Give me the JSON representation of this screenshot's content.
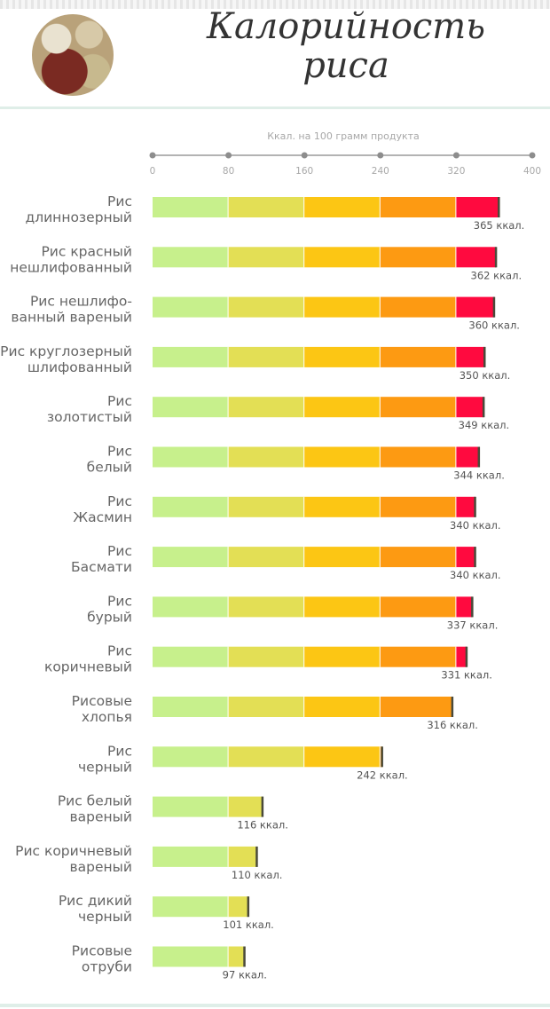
{
  "header": {
    "title_line1": "Калорийность",
    "title_line2": "риса",
    "photo_icon": "rice-photo"
  },
  "chart_data": {
    "type": "bar",
    "orientation": "horizontal",
    "axis_title": "Ккал. на 100 грамм продукта",
    "xlim": [
      0,
      400
    ],
    "ticks": [
      0,
      80,
      160,
      240,
      320,
      400
    ],
    "segment_colors": [
      "#c7f08c",
      "#e3df55",
      "#fcc614",
      "#fd9a12",
      "#ff0a3f"
    ],
    "unit_label": "ккал.",
    "categories": [
      [
        "Рис",
        "длиннозерный"
      ],
      [
        "Рис красный",
        "нешлифованный"
      ],
      [
        "Рис нешлифо-",
        "ванный вареный"
      ],
      [
        "Рис круглозерный",
        "шлифованный"
      ],
      [
        "Рис",
        "золотистый"
      ],
      [
        "Рис",
        "белый"
      ],
      [
        "Рис",
        "Жасмин"
      ],
      [
        "Рис",
        "Басмати"
      ],
      [
        "Рис",
        "бурый"
      ],
      [
        "Рис",
        "коричневый"
      ],
      [
        "Рисовые",
        "хлопья"
      ],
      [
        "Рис",
        "черный"
      ],
      [
        "Рис белый",
        "вареный"
      ],
      [
        "Рис коричневый",
        "вареный"
      ],
      [
        "Рис дикий",
        "черный"
      ],
      [
        "Рисовые",
        "отруби"
      ]
    ],
    "values": [
      365,
      362,
      360,
      350,
      349,
      344,
      340,
      340,
      337,
      331,
      316,
      242,
      116,
      110,
      101,
      97
    ]
  }
}
